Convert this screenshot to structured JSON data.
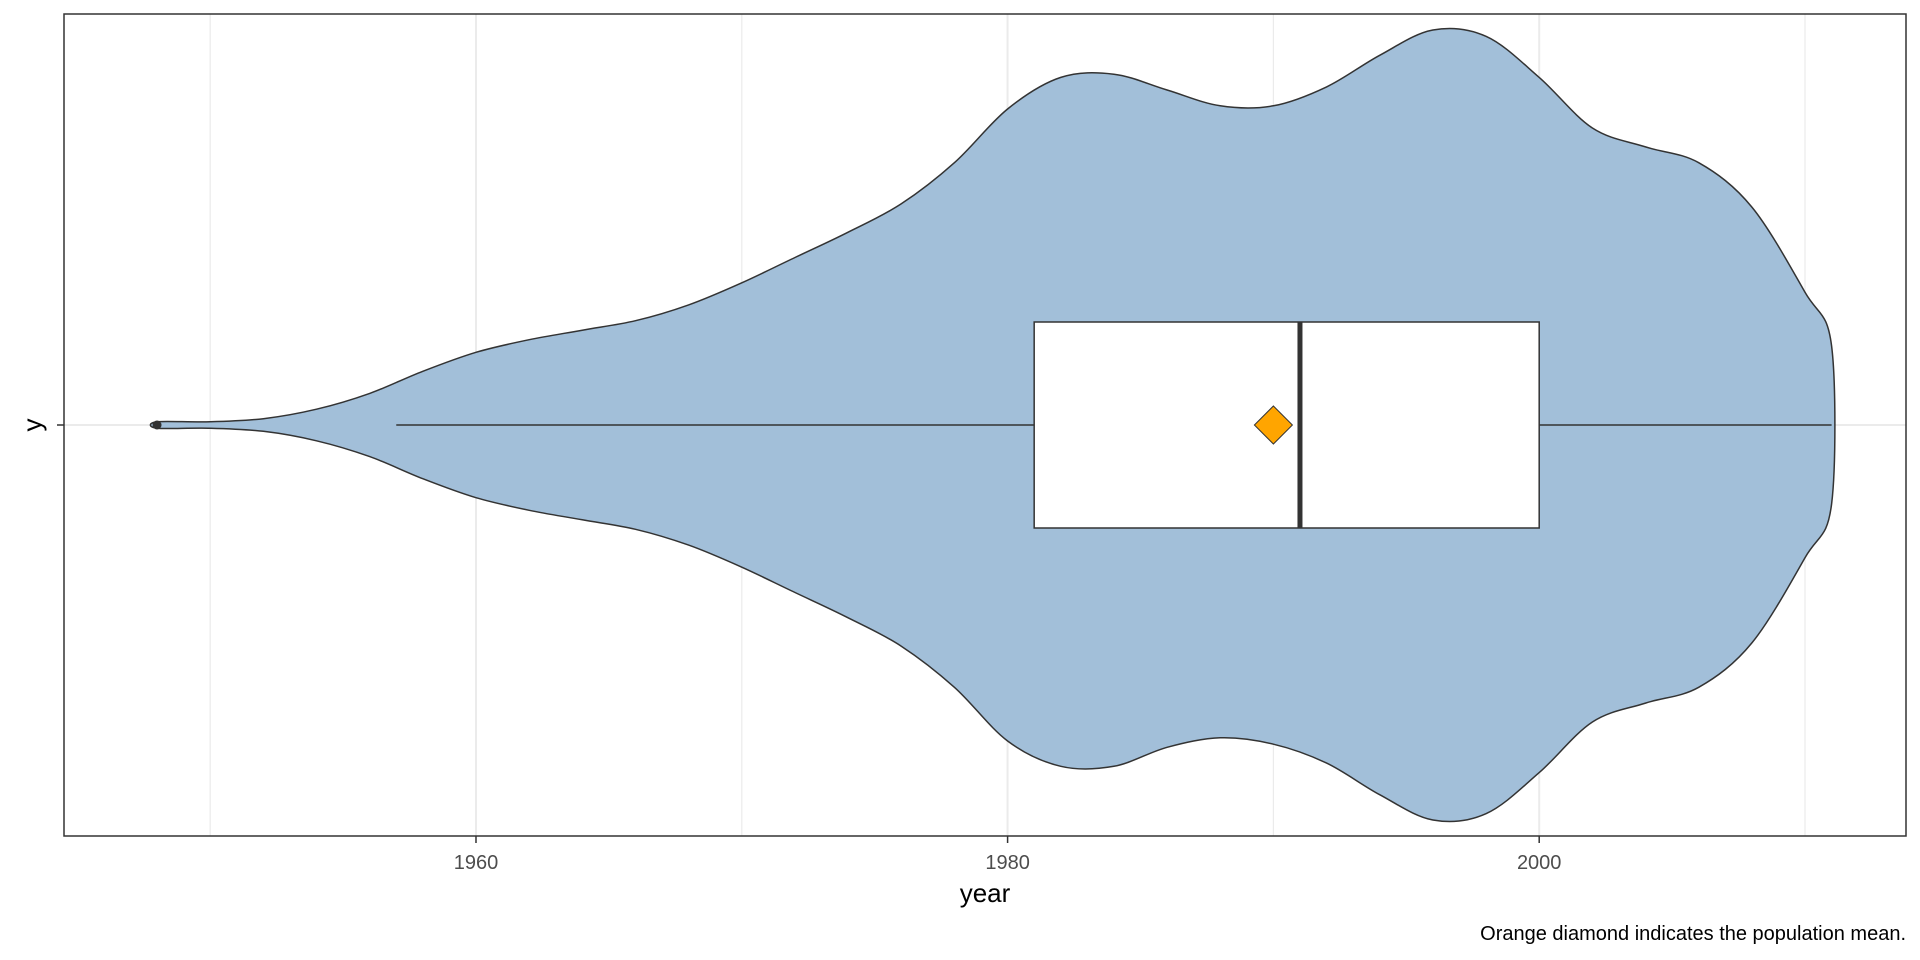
{
  "chart_data": {
    "type": "violin",
    "xlabel": "year",
    "ylabel": "y",
    "x_ticks": [
      1960,
      1980,
      2000
    ],
    "x_tick_labels": [
      "1960",
      "1980",
      "2000"
    ],
    "xlim": [
      1944.5,
      2013.8
    ],
    "grid": true,
    "caption": "Orange diamond indicates the population mean.",
    "colors": {
      "violin_fill": "#a2bfd9",
      "outline": "#333333",
      "box_fill": "#ffffff",
      "mean_marker": "#ffa500",
      "grid": "#ebebeb"
    },
    "density": {
      "x": [
        1948.0,
        1950.0,
        1952.0,
        1954.0,
        1956.0,
        1958.0,
        1960.0,
        1962.0,
        1964.0,
        1966.0,
        1968.0,
        1970.0,
        1972.0,
        1974.0,
        1976.0,
        1978.0,
        1980.0,
        1982.0,
        1984.0,
        1986.0,
        1988.0,
        1990.0,
        1992.0,
        1994.0,
        1996.0,
        1998.0,
        2000.0,
        2002.0,
        2004.0,
        2006.0,
        2008.0,
        2010.0,
        2011.0
      ],
      "upper": [
        0.01,
        0.01,
        0.02,
        0.05,
        0.1,
        0.17,
        0.23,
        0.27,
        0.3,
        0.33,
        0.38,
        0.45,
        0.53,
        0.61,
        0.7,
        0.83,
        1.0,
        1.1,
        1.11,
        1.06,
        1.01,
        1.01,
        1.07,
        1.17,
        1.25,
        1.23,
        1.1,
        0.94,
        0.88,
        0.83,
        0.69,
        0.42,
        0.25
      ],
      "lower": [
        0.01,
        0.01,
        0.02,
        0.05,
        0.1,
        0.17,
        0.23,
        0.27,
        0.3,
        0.33,
        0.38,
        0.45,
        0.53,
        0.61,
        0.7,
        0.83,
        1.0,
        1.08,
        1.08,
        1.02,
        0.99,
        1.01,
        1.07,
        1.17,
        1.25,
        1.23,
        1.1,
        0.94,
        0.88,
        0.83,
        0.69,
        0.42,
        0.25
      ]
    },
    "box": {
      "min": 1957,
      "q1": 1981,
      "median": 1991,
      "q3": 2000,
      "max": 2011,
      "outliers": [
        1948
      ],
      "mean": 1990
    }
  }
}
